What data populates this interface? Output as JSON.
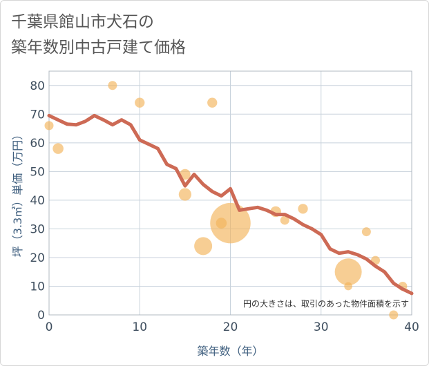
{
  "title_lines": [
    "千葉県館山市犬石の",
    "築年数別中古戸建て価格"
  ],
  "colors": {
    "line": "#cd6a55",
    "bubble": "#f3b45a",
    "grid": "#c8d2dc",
    "plot_border": "#b0b8c0",
    "axis_text": "#3f4f5f"
  },
  "chart_data": {
    "type": "scatter",
    "title": "千葉県館山市犬石の築年数別中古戸建て価格",
    "xlabel": "築年数（年）",
    "ylabel": "坪（3.3㎡）単価（万円）",
    "xlim": [
      0,
      40
    ],
    "ylim": [
      0,
      85
    ],
    "xticks": [
      0,
      10,
      20,
      30,
      40
    ],
    "yticks": [
      0,
      10,
      20,
      30,
      40,
      50,
      60,
      70,
      80
    ],
    "grid": true,
    "note": "円の大きさは、取引のあった物件面積を示す",
    "scatter": [
      {
        "x": 0,
        "y": 66,
        "size": 1
      },
      {
        "x": 1,
        "y": 58,
        "size": 1.2
      },
      {
        "x": 7,
        "y": 80,
        "size": 1
      },
      {
        "x": 10,
        "y": 74,
        "size": 1.1
      },
      {
        "x": 15,
        "y": 49,
        "size": 1.2
      },
      {
        "x": 15,
        "y": 42,
        "size": 1.4
      },
      {
        "x": 17,
        "y": 24,
        "size": 2
      },
      {
        "x": 18,
        "y": 74,
        "size": 1.1
      },
      {
        "x": 19,
        "y": 32,
        "size": 1.2
      },
      {
        "x": 20,
        "y": 32,
        "size": 4.5
      },
      {
        "x": 25,
        "y": 36,
        "size": 1.2
      },
      {
        "x": 26,
        "y": 33,
        "size": 1
      },
      {
        "x": 28,
        "y": 37,
        "size": 1.1
      },
      {
        "x": 33,
        "y": 15,
        "size": 3
      },
      {
        "x": 33,
        "y": 10,
        "size": 0.9
      },
      {
        "x": 35,
        "y": 29,
        "size": 1
      },
      {
        "x": 36,
        "y": 19,
        "size": 1
      },
      {
        "x": 38,
        "y": 0,
        "size": 1
      },
      {
        "x": 39,
        "y": 10,
        "size": 1
      }
    ],
    "trend": {
      "x": [
        0,
        1,
        2,
        3,
        4,
        5,
        6,
        7,
        8,
        9,
        10,
        11,
        12,
        13,
        14,
        15,
        16,
        17,
        18,
        19,
        20,
        21,
        22,
        23,
        24,
        25,
        26,
        27,
        28,
        29,
        30,
        31,
        32,
        33,
        34,
        35,
        36,
        37,
        38,
        39,
        40
      ],
      "y": [
        69.5,
        68,
        66.5,
        66.3,
        67.5,
        69.5,
        68,
        66.3,
        68,
        66.3,
        61,
        59.5,
        58,
        52.5,
        51,
        45,
        49,
        45.5,
        43,
        41.5,
        44,
        36.5,
        37,
        37.5,
        36.5,
        35,
        35,
        33.5,
        31.5,
        30,
        28,
        23,
        21.5,
        22,
        21,
        19.5,
        17,
        15,
        11,
        9,
        7.5
      ]
    }
  }
}
